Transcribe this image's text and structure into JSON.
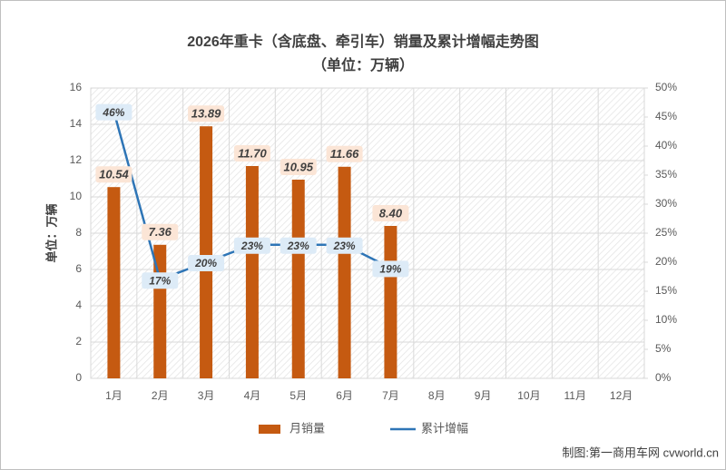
{
  "chart_data": {
    "type": "bar",
    "title": "2026年重卡（含底盘、牵引车）销量及累计增幅走势图",
    "subtitle": "（单位：万辆）",
    "y_label": "单位：万辆",
    "source": "制图:第一商用车网 cvworld.cn",
    "categories": [
      "1月",
      "2月",
      "3月",
      "4月",
      "5月",
      "6月",
      "7月",
      "8月",
      "9月",
      "10月",
      "11月",
      "12月"
    ],
    "series": [
      {
        "name": "月销量",
        "type": "bar",
        "color": "#c55a11",
        "values": [
          10.54,
          7.36,
          13.89,
          11.7,
          10.95,
          11.66,
          8.4,
          null,
          null,
          null,
          null,
          null
        ],
        "value_labels": [
          "10.54",
          "7.36",
          "13.89",
          "11.70",
          "10.95",
          "11.66",
          "8.40",
          null,
          null,
          null,
          null,
          null
        ]
      },
      {
        "name": "累计增幅",
        "type": "line",
        "color": "#2e75b6",
        "axis": "y2",
        "values": [
          46,
          17,
          20,
          23,
          23,
          23,
          19,
          null,
          null,
          null,
          null,
          null
        ],
        "value_labels": [
          "46%",
          "17%",
          "20%",
          "23%",
          "23%",
          "23%",
          "19%",
          null,
          null,
          null,
          null,
          null
        ]
      }
    ],
    "ylim": [
      0,
      16
    ],
    "yticks": [
      0,
      2,
      4,
      6,
      8,
      10,
      12,
      14,
      16
    ],
    "y2lim": [
      0,
      50
    ],
    "y2ticks": [
      {
        "value": 0,
        "label": "0%"
      },
      {
        "value": 5,
        "label": "5%"
      },
      {
        "value": 10,
        "label": "10%"
      },
      {
        "value": 15,
        "label": "15%"
      },
      {
        "value": 20,
        "label": "20%"
      },
      {
        "value": 25,
        "label": "25%"
      },
      {
        "value": 30,
        "label": "30%"
      },
      {
        "value": 35,
        "label": "35%"
      },
      {
        "value": 40,
        "label": "40%"
      },
      {
        "value": 45,
        "label": "45%"
      },
      {
        "value": 50,
        "label": "50%"
      }
    ],
    "grid": true,
    "legend": "bottom"
  }
}
